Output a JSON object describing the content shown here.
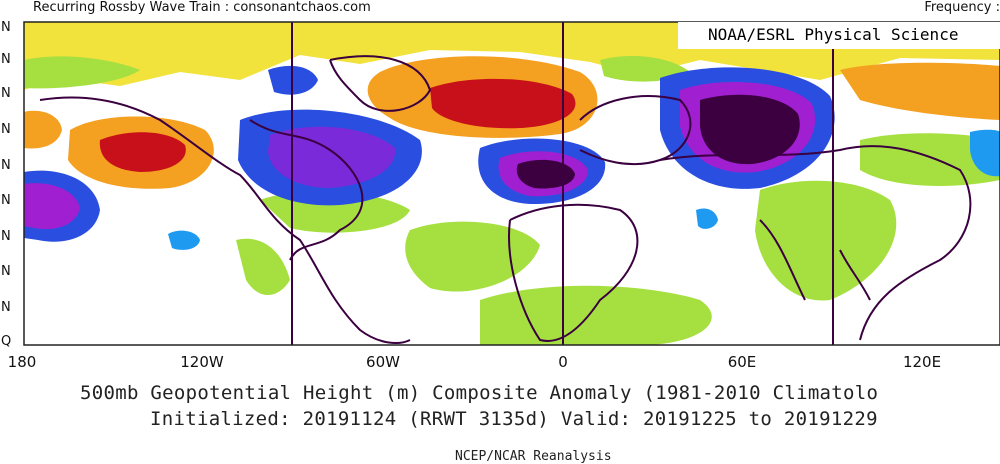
{
  "header": {
    "title": "Recurring Rossby Wave Train : consonantchaos.com",
    "frequency_label": "Frequency :"
  },
  "map": {
    "agency_label": "NOAA/ESRL Physical Science",
    "latitude_labels": [
      "N",
      "N",
      "N",
      "N",
      "N",
      "N",
      "N",
      "N",
      "N",
      "Q"
    ],
    "longitude_labels": [
      "180",
      "120W",
      "60W",
      "0",
      "60E",
      "120E"
    ],
    "palette": {
      "strong_negative": "#3c0040",
      "purple": "#a01fd0",
      "violet": "#7a2ad8",
      "blue": "#2a4fe0",
      "light_blue": "#1e9af0",
      "neutral": "#ffffff",
      "light_green": "#a6e040",
      "yellow": "#f2e23c",
      "orange": "#f4a020",
      "red_orange": "#e8501a",
      "strong_positive": "#c8101a",
      "coastline": "#3a0040"
    }
  },
  "caption": {
    "line1": "500mb Geopotential Height (m) Composite Anomaly (1981-2010 Climatolo",
    "line2": "Initialized: 20191124 (RRWT 3135d) Valid: 20191225 to 20191229"
  },
  "footer": {
    "source": "NCEP/NCAR Reanalysis"
  }
}
